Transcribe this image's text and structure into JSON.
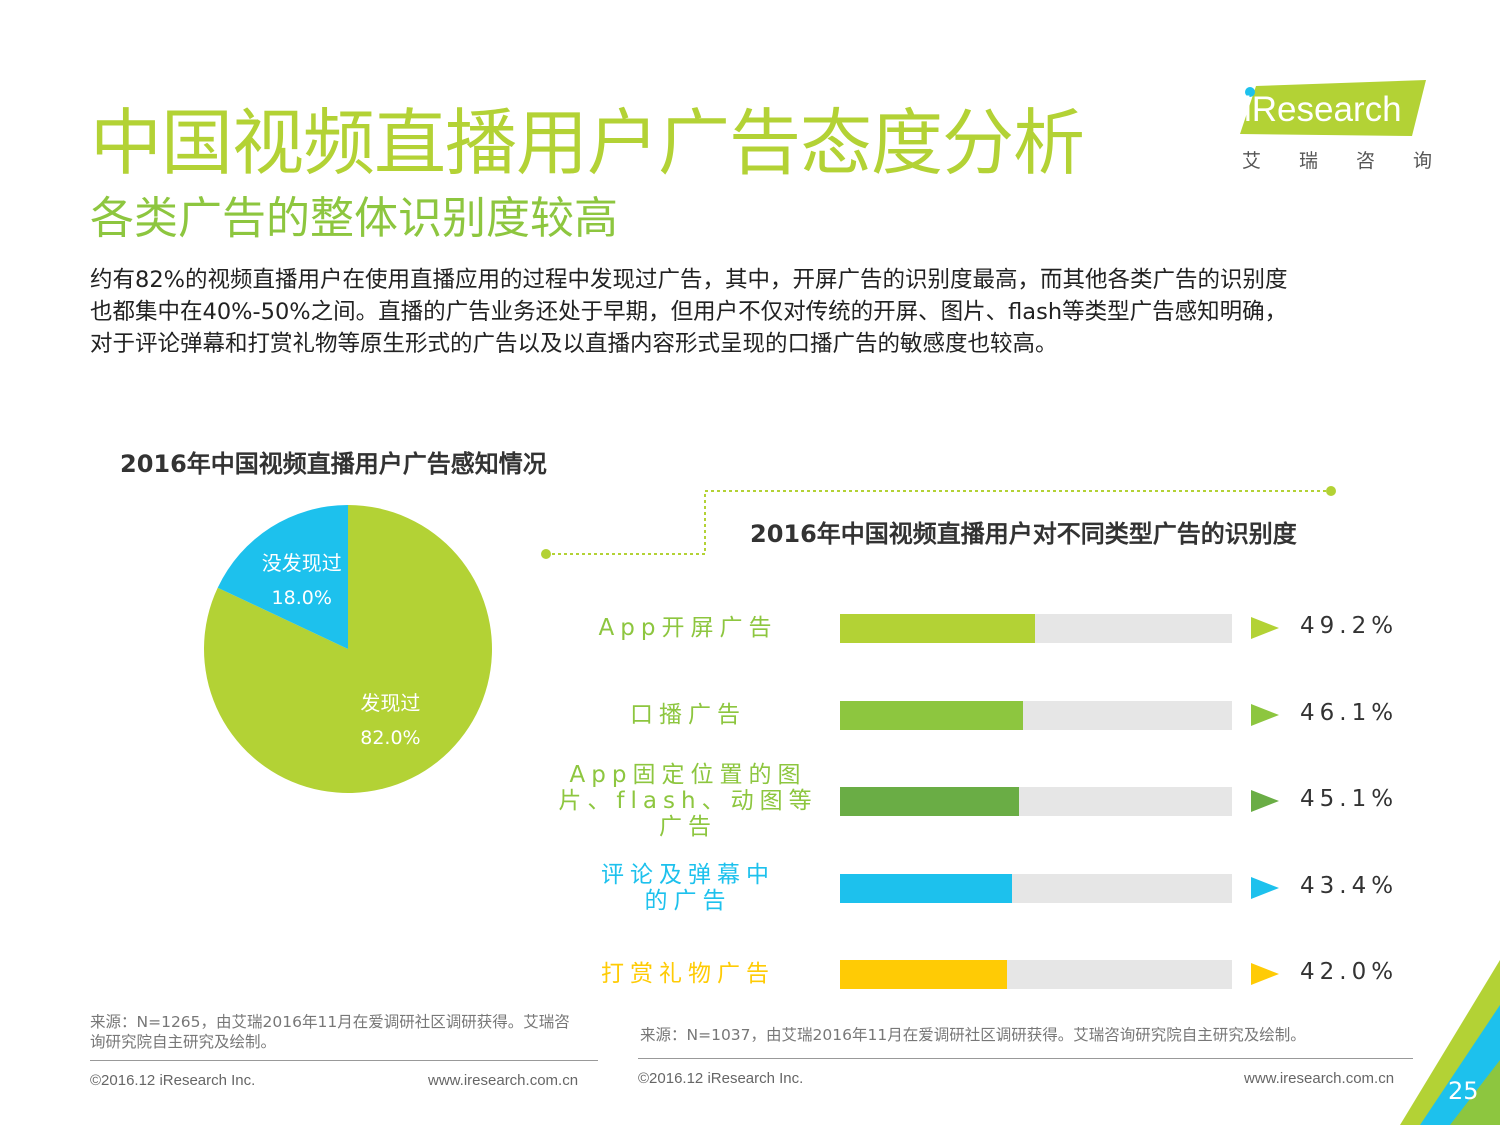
{
  "header": {
    "title": "中国视频直播用户广告态度分析",
    "subtitle": "各类广告的整体识别度较高",
    "logo_word": "iResearch",
    "logo_cn": "艾瑞咨询"
  },
  "intro": [
    "约有82%的视频直播用户在使用直播应用的过程中发现过广告，其中，开屏广告的识别度最高，而其他各类广告的识别度",
    "也都集中在40%-50%之间。直播的广告业务还处于早期，但用户不仅对传统的开屏、图片、flash等类型广告感知明确，",
    "对于评论弹幕和打赏礼物等原生形式的广告以及以直播内容形式呈现的口播广告的敏感度也较高。"
  ],
  "chart_data": [
    {
      "type": "pie",
      "title": "2016年中国视频直播用户广告感知情况",
      "slices": [
        {
          "label": "发现过",
          "value": 82.0,
          "display": "82.0%",
          "color": "#b3d235"
        },
        {
          "label": "没发现过",
          "value": 18.0,
          "display": "18.0%",
          "color": "#1dc1ed"
        }
      ]
    },
    {
      "type": "bar",
      "orientation": "horizontal",
      "title": "2016年中国视频直播用户对不同类型广告的识别度",
      "categories": [
        [
          "App开屏广告"
        ],
        [
          "口播广告"
        ],
        [
          "App固定位置的图",
          "片、flash、动图等",
          "广告"
        ],
        [
          "评论及弹幕中",
          "的广告"
        ],
        [
          "打赏礼物广告"
        ]
      ],
      "values": [
        49.2,
        46.1,
        45.1,
        43.4,
        42.0
      ],
      "value_labels": [
        "49.2%",
        "46.1%",
        "45.1%",
        "43.4%",
        "42.0%"
      ],
      "colors": [
        "#b3d235",
        "#8dc63f",
        "#6aad45",
        "#1dc1ed",
        "#ffcb05"
      ],
      "label_colors": [
        "#8dc63f",
        "#8dc63f",
        "#8dc63f",
        "#1dc1ed",
        "#ffcb05"
      ],
      "track_color": "#e6e6e6",
      "xlim": [
        0,
        100
      ]
    }
  ],
  "sources": {
    "left": [
      "来源：N=1265，由艾瑞2016年11月在爱调研社区调研获得。艾瑞咨",
      "询研究院自主研究及绘制。"
    ],
    "right": "来源：N=1037，由艾瑞2016年11月在爱调研社区调研获得。艾瑞咨询研究院自主研究及绘制。"
  },
  "footer": {
    "copyright": "©2016.12 iResearch Inc.",
    "website": "www.iresearch.com.cn",
    "page_number": "25"
  },
  "colors": {
    "lime": "#b3d235",
    "green": "#8dc63f",
    "cyan": "#1dc1ed",
    "yellow": "#ffcb05"
  }
}
